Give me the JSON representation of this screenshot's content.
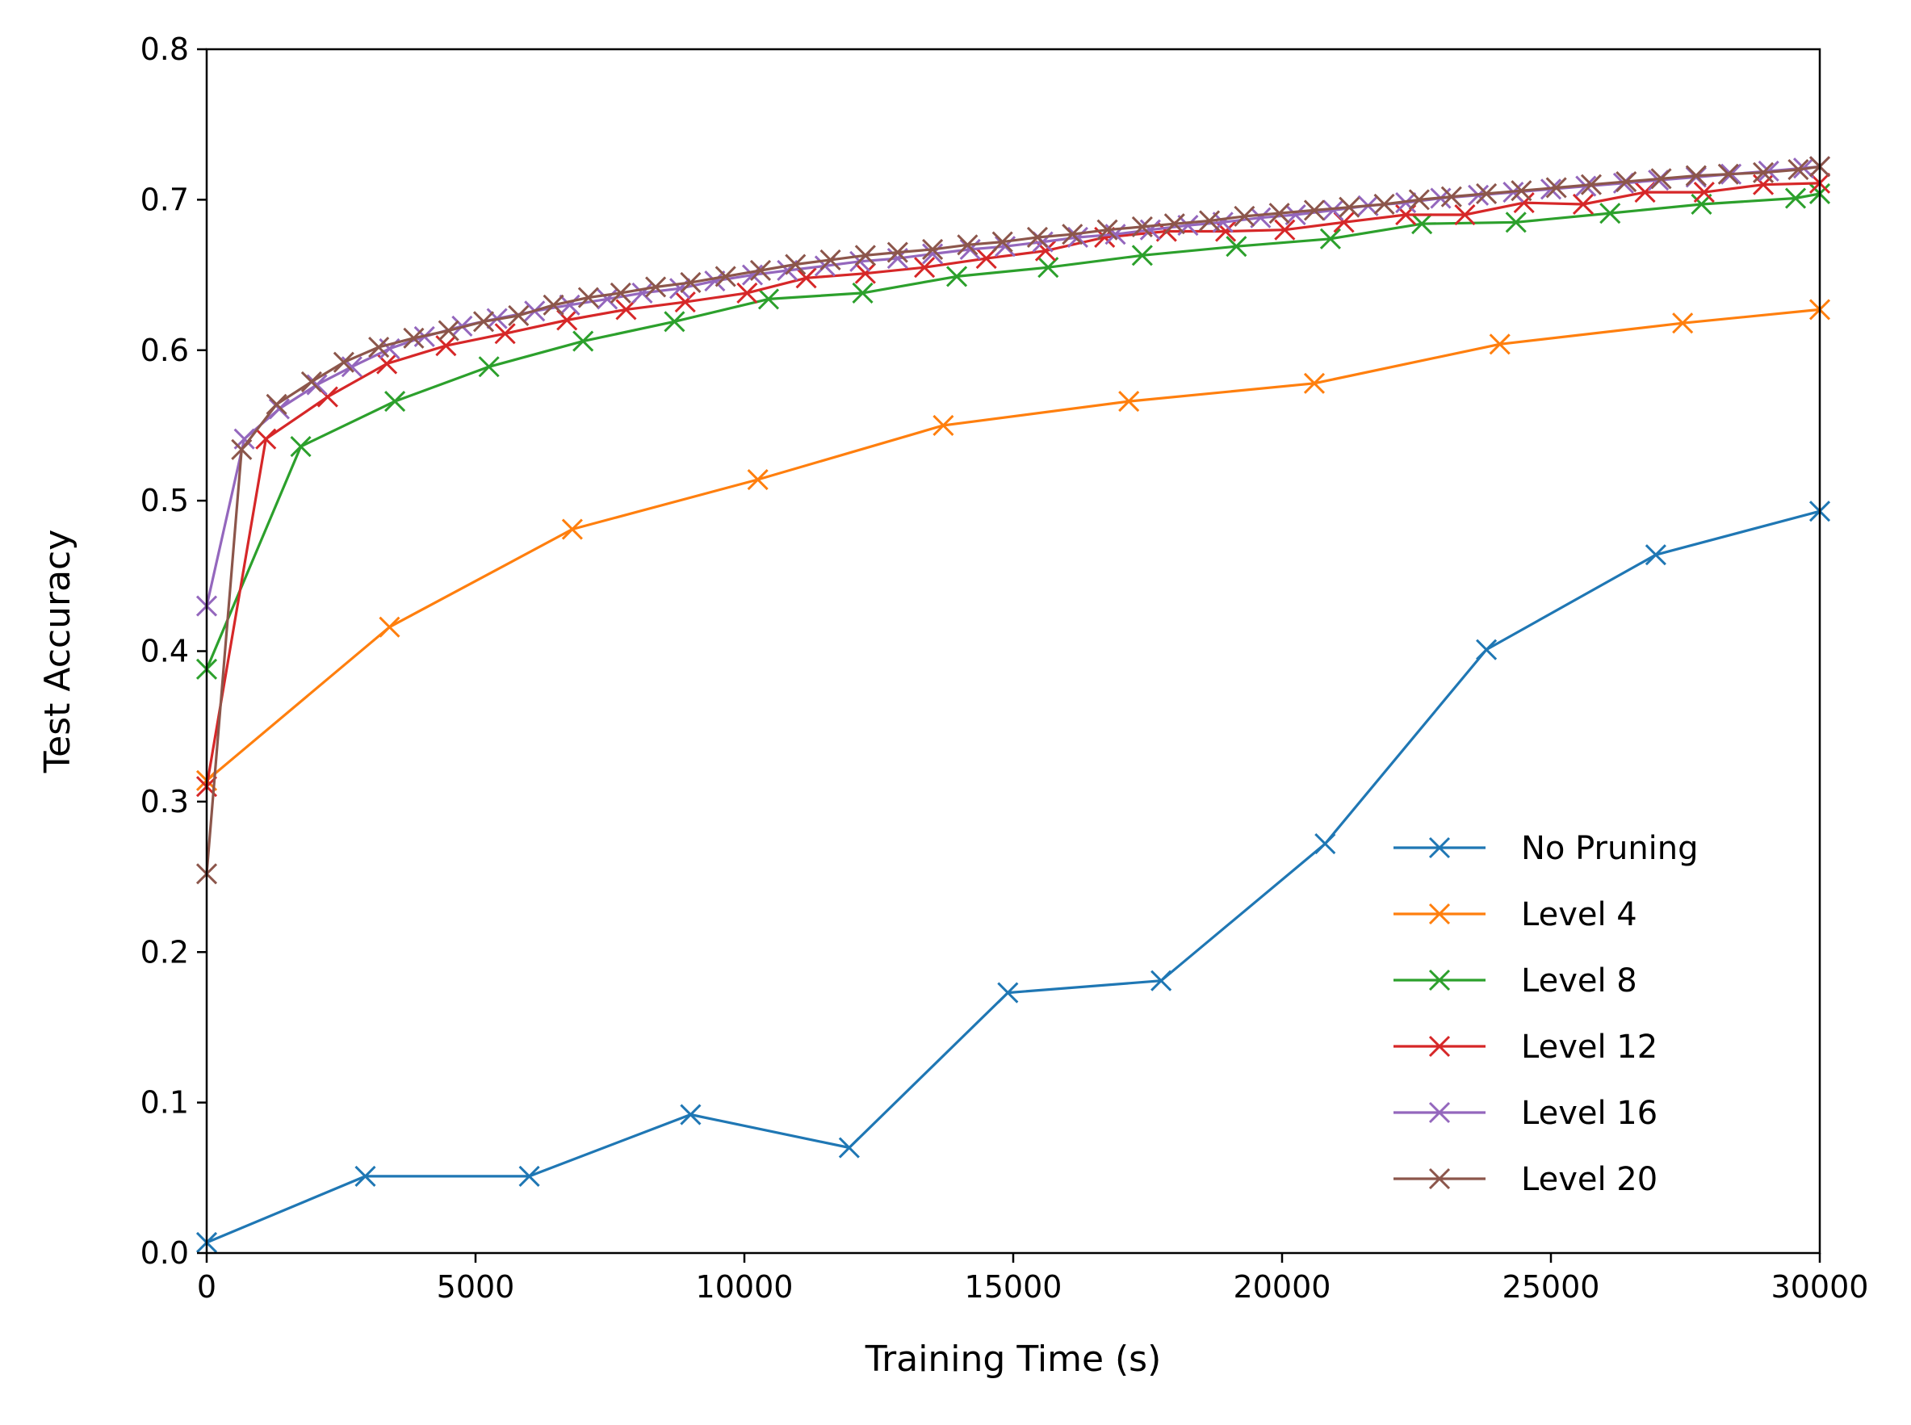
{
  "chart_data": {
    "type": "line",
    "title": "",
    "xlabel": "Training Time (s)",
    "ylabel": "Test Accuracy",
    "xlim": [
      0,
      30000
    ],
    "ylim": [
      0.0,
      0.8
    ],
    "xticks": [
      0,
      5000,
      10000,
      15000,
      20000,
      25000,
      30000
    ],
    "xtick_labels": [
      "0",
      "5000",
      "10000",
      "15000",
      "20000",
      "25000",
      "30000"
    ],
    "yticks": [
      0.0,
      0.1,
      0.2,
      0.3,
      0.4,
      0.5,
      0.6,
      0.7,
      0.8
    ],
    "ytick_labels": [
      "0.0",
      "0.1",
      "0.2",
      "0.3",
      "0.4",
      "0.5",
      "0.6",
      "0.7",
      "0.8"
    ],
    "grid": false,
    "legend_position": "lower-right",
    "marker": "x",
    "series": [
      {
        "name": "No Pruning",
        "color": "#1f77b4",
        "x": [
          0,
          2950,
          6000,
          9000,
          11950,
          14900,
          17750,
          20800,
          23800,
          26950,
          30000
        ],
        "y": [
          0.007,
          0.051,
          0.051,
          0.092,
          0.07,
          0.173,
          0.181,
          0.272,
          0.401,
          0.464,
          0.493
        ]
      },
      {
        "name": "Level 4",
        "color": "#ff7f0e",
        "x": [
          0,
          3400,
          6800,
          10250,
          13700,
          17150,
          20600,
          24050,
          27450,
          30000
        ],
        "y": [
          0.314,
          0.416,
          0.481,
          0.514,
          0.55,
          0.566,
          0.578,
          0.604,
          0.618,
          0.627
        ]
      },
      {
        "name": "Level 8",
        "color": "#2ca02c",
        "x": [
          0,
          1750,
          3500,
          5250,
          7000,
          8700,
          10450,
          12200,
          13950,
          15650,
          17400,
          19150,
          20900,
          22600,
          24350,
          26100,
          27800,
          29550,
          30000
        ],
        "y": [
          0.388,
          0.536,
          0.566,
          0.589,
          0.606,
          0.619,
          0.634,
          0.638,
          0.649,
          0.655,
          0.663,
          0.669,
          0.674,
          0.684,
          0.685,
          0.691,
          0.697,
          0.701,
          0.704
        ]
      },
      {
        "name": "Level 12",
        "color": "#d62728",
        "x": [
          0,
          1100,
          2250,
          3350,
          4450,
          5550,
          6700,
          7800,
          8900,
          10050,
          11150,
          12250,
          13350,
          14500,
          15600,
          16700,
          17850,
          18950,
          20050,
          21150,
          22300,
          23400,
          24500,
          25600,
          26750,
          27850,
          28950,
          30000
        ],
        "y": [
          0.31,
          0.541,
          0.569,
          0.591,
          0.603,
          0.611,
          0.62,
          0.627,
          0.632,
          0.638,
          0.648,
          0.651,
          0.655,
          0.661,
          0.666,
          0.675,
          0.679,
          0.679,
          0.68,
          0.685,
          0.69,
          0.69,
          0.698,
          0.697,
          0.705,
          0.705,
          0.71,
          0.711
        ]
      },
      {
        "name": "Level 16",
        "color": "#9467bd",
        "x": [
          0,
          700,
          1350,
          2050,
          2700,
          3400,
          4050,
          4750,
          5400,
          6100,
          6750,
          7450,
          8100,
          8800,
          9450,
          10150,
          10800,
          11500,
          12150,
          12850,
          13500,
          14200,
          14850,
          15550,
          16200,
          16900,
          17550,
          18250,
          18900,
          19600,
          20250,
          20950,
          21600,
          22300,
          22950,
          23650,
          24300,
          25000,
          25650,
          26350,
          27000,
          27700,
          28350,
          29050,
          29700,
          30000
        ],
        "y": [
          0.43,
          0.541,
          0.561,
          0.577,
          0.589,
          0.601,
          0.609,
          0.616,
          0.621,
          0.626,
          0.63,
          0.634,
          0.638,
          0.641,
          0.646,
          0.65,
          0.653,
          0.656,
          0.659,
          0.661,
          0.664,
          0.667,
          0.669,
          0.672,
          0.675,
          0.677,
          0.68,
          0.683,
          0.685,
          0.688,
          0.69,
          0.693,
          0.696,
          0.698,
          0.701,
          0.703,
          0.705,
          0.707,
          0.709,
          0.711,
          0.713,
          0.715,
          0.717,
          0.719,
          0.721,
          0.722
        ]
      },
      {
        "name": "Level 20",
        "color": "#8c564b",
        "x": [
          0,
          650,
          1300,
          1950,
          2550,
          3200,
          3850,
          4500,
          5150,
          5800,
          6450,
          7100,
          7700,
          8350,
          9000,
          9650,
          10300,
          10950,
          11600,
          12250,
          12850,
          13500,
          14150,
          14800,
          15450,
          16100,
          16750,
          17400,
          18000,
          18650,
          19300,
          19950,
          20600,
          21250,
          21900,
          22550,
          23150,
          23800,
          24450,
          25100,
          25750,
          26400,
          27050,
          27700,
          28300,
          28950,
          29600,
          30000
        ],
        "y": [
          0.252,
          0.534,
          0.564,
          0.579,
          0.592,
          0.602,
          0.608,
          0.613,
          0.619,
          0.623,
          0.63,
          0.635,
          0.638,
          0.642,
          0.645,
          0.649,
          0.653,
          0.657,
          0.66,
          0.663,
          0.665,
          0.667,
          0.67,
          0.672,
          0.675,
          0.677,
          0.68,
          0.682,
          0.684,
          0.686,
          0.689,
          0.691,
          0.693,
          0.695,
          0.697,
          0.7,
          0.702,
          0.704,
          0.706,
          0.708,
          0.71,
          0.712,
          0.714,
          0.716,
          0.717,
          0.718,
          0.72,
          0.722
        ]
      }
    ]
  }
}
